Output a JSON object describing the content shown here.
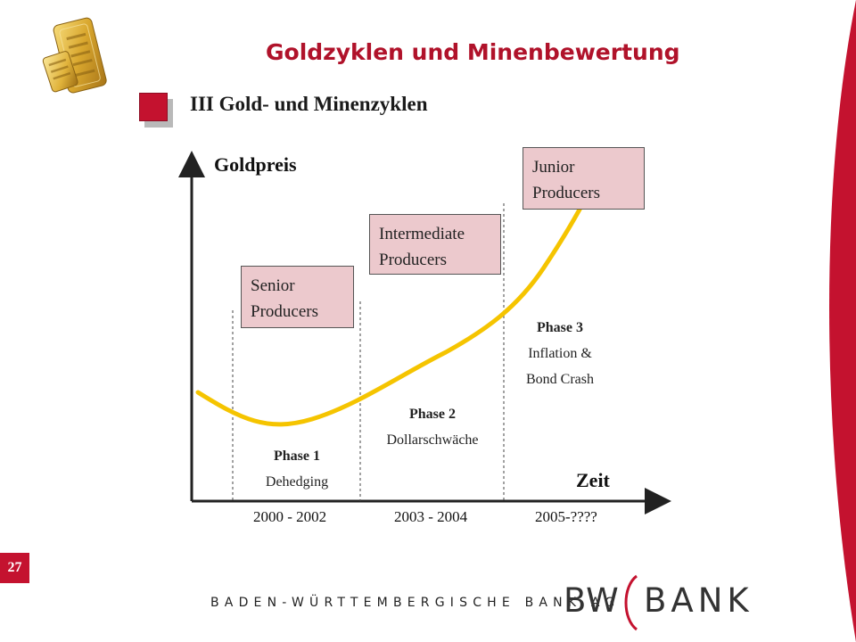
{
  "header": {
    "title": "Goldzyklen und Minenbewertung",
    "subtitle": "III Gold- und Minenzyklen"
  },
  "chart": {
    "y_axis_label": "Goldpreis",
    "x_axis_label": "Zeit",
    "boxes": [
      {
        "line1": "Senior",
        "line2": "Producers"
      },
      {
        "line1": "Intermediate",
        "line2": "Producers"
      },
      {
        "line1": "Junior",
        "line2": "Producers"
      }
    ],
    "phases": [
      {
        "title": "Phase 1",
        "line1": "Dehedging",
        "line2": ""
      },
      {
        "title": "Phase 2",
        "line1": "Dollarschwäche",
        "line2": ""
      },
      {
        "title": "Phase 3",
        "line1": "Inflation &",
        "line2": "Bond Crash"
      }
    ],
    "periods": [
      "2000 - 2002",
      "2003 - 2004",
      "2005-????"
    ],
    "curve_color": "#f5c400"
  },
  "footer": {
    "page_number": "27",
    "bank_name": "BADEN-WÜRTTEMBERGISCHE BANK AG",
    "logo_left": "BW",
    "logo_right": "BANK"
  },
  "icons": {
    "logo_image": "gold-bars-icon"
  },
  "colors": {
    "accent": "#c4122f",
    "box_fill": "#ecc9cd"
  }
}
